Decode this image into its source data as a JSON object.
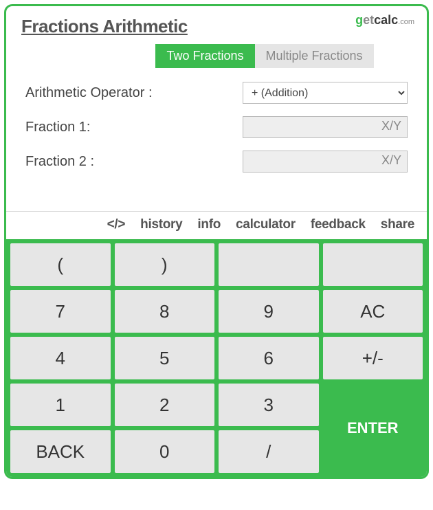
{
  "header": {
    "title": "Fractions Arithmetic",
    "brand_g": "g",
    "brand_et": "et",
    "brand_calc": "calc",
    "brand_com": ".com"
  },
  "tabs": {
    "two": "Two Fractions",
    "multiple": "Multiple Fractions"
  },
  "form": {
    "operator_label": "Arithmetic Operator :",
    "operator_value": "+ (Addition)",
    "frac1_label": "Fraction 1:",
    "frac1_placeholder": "X/Y",
    "frac2_label": "Fraction 2 :",
    "frac2_placeholder": "X/Y"
  },
  "toolbar": {
    "embed": "</>",
    "history": "history",
    "info": "info",
    "calculator": "calculator",
    "feedback": "feedback",
    "share": "share"
  },
  "keys": {
    "lparen": "(",
    "rparen": ")",
    "k7": "7",
    "k8": "8",
    "k9": "9",
    "ac": "AC",
    "k4": "4",
    "k5": "5",
    "k6": "6",
    "pm": "+/-",
    "k1": "1",
    "k2": "2",
    "k3": "3",
    "back": "BACK",
    "k0": "0",
    "slash": "/",
    "enter": "ENTER"
  }
}
